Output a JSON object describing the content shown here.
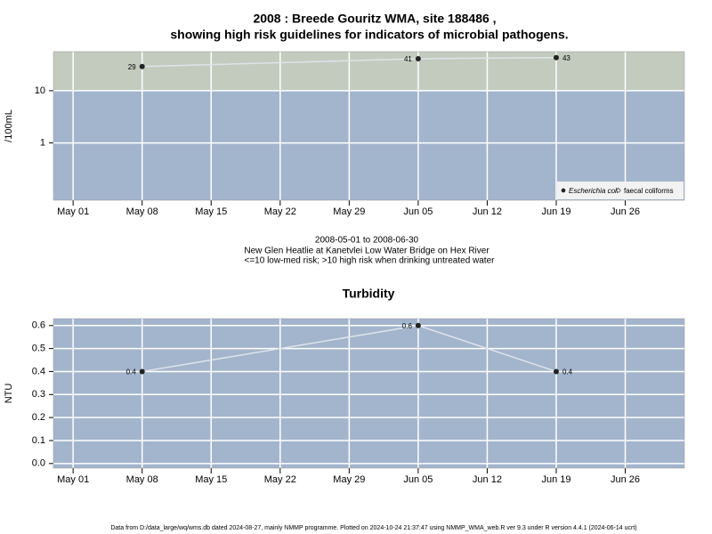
{
  "chart_data": [
    {
      "type": "line",
      "title": "2008 : Breede Gouritz WMA, site 188486 ,",
      "subtitle": "showing high risk guidelines for indicators of microbial pathogens.",
      "ylabel": "/100mL",
      "log_scale": true,
      "x": [
        "2008-05-08",
        "2008-06-05",
        "2008-06-19"
      ],
      "series": [
        {
          "name": "Escherichia coli",
          "color": "#222222",
          "values": [
            29,
            41,
            43
          ]
        },
        {
          "name": "faecal coliforms",
          "color": "#ffffff",
          "values": [
            null,
            null,
            null
          ]
        }
      ],
      "line_color": "#dfe3e8",
      "xlim": [
        "2008-04-29",
        "2008-07-02"
      ],
      "xticks": [
        {
          "value": "2008-05-01",
          "label": "May 01"
        },
        {
          "value": "2008-05-08",
          "label": "May 08"
        },
        {
          "value": "2008-05-15",
          "label": "May 15"
        },
        {
          "value": "2008-05-22",
          "label": "May 22"
        },
        {
          "value": "2008-05-29",
          "label": "May 29"
        },
        {
          "value": "2008-06-05",
          "label": "Jun 05"
        },
        {
          "value": "2008-06-12",
          "label": "Jun 12"
        },
        {
          "value": "2008-06-19",
          "label": "Jun 19"
        },
        {
          "value": "2008-06-26",
          "label": "Jun 26"
        }
      ],
      "ylim": [
        0.08,
        56
      ],
      "yticks": [
        1,
        10
      ],
      "grid": true,
      "legend": "bottom-right",
      "risk_threshold": 10,
      "background": "#a3b5cd",
      "high_risk_color": "#c3cbbf"
    },
    {
      "type": "line",
      "title": "Turbidity",
      "ylabel": "NTU",
      "log_scale": false,
      "x": [
        "2008-05-08",
        "2008-06-05",
        "2008-06-19"
      ],
      "values": [
        0.4,
        0.6,
        0.4
      ],
      "color": "#222222",
      "line_color": "#dfe3e8",
      "xlim": [
        "2008-04-29",
        "2008-07-02"
      ],
      "xticks": [
        {
          "value": "2008-05-01",
          "label": "May 01"
        },
        {
          "value": "2008-05-08",
          "label": "May 08"
        },
        {
          "value": "2008-05-15",
          "label": "May 15"
        },
        {
          "value": "2008-05-22",
          "label": "May 22"
        },
        {
          "value": "2008-05-29",
          "label": "May 29"
        },
        {
          "value": "2008-06-05",
          "label": "Jun 05"
        },
        {
          "value": "2008-06-12",
          "label": "Jun 12"
        },
        {
          "value": "2008-06-19",
          "label": "Jun 19"
        },
        {
          "value": "2008-06-26",
          "label": "Jun 26"
        }
      ],
      "ylim": [
        -0.02,
        0.63
      ],
      "yticks": [
        {
          "value": 0,
          "label": "0.0"
        },
        0.1,
        0.2,
        0.3,
        0.4,
        0.5,
        0.6
      ],
      "grid": true,
      "background": "#a3b5cd"
    }
  ],
  "caption": [
    "2008-05-01 to 2008-06-30",
    "New Glen Heatlie at Kanetvlei Low Water Bridge on Hex River",
    "<=10 low-med risk; >10 high risk when drinking untreated water"
  ],
  "footer": "Data from D:/data_large/wq/wms.db dated 2024-08-27, mainly NMMP programme. Plotted on 2024-10-24 21:37:47 using NMMP_WMA_web.R ver 9.3 under R version 4.4.1 (2024-06-14 ucrt)"
}
